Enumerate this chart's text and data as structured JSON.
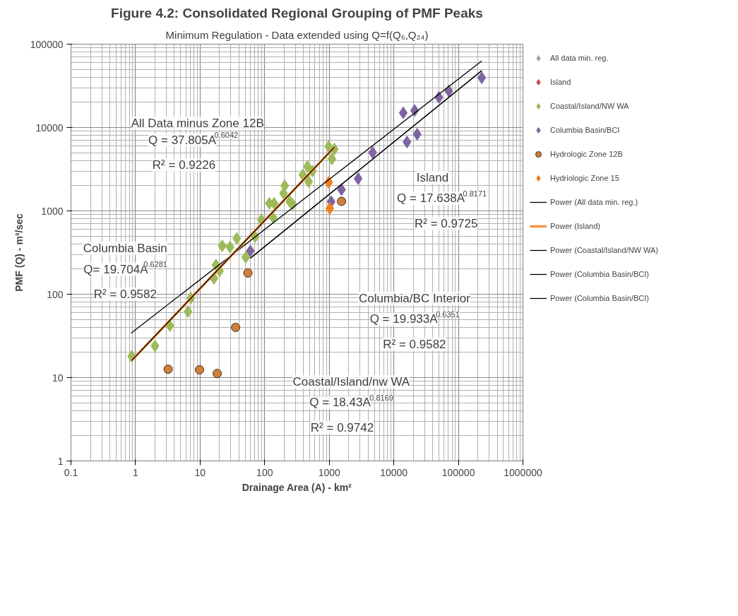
{
  "chart_data": {
    "type": "scatter",
    "title": "Figure 4.2: Consolidated Regional Grouping of PMF Peaks",
    "subtitle": "Minimum Regulation - Data extended using Q=f(Q₆,Q₂₄)",
    "xlabel": "Drainage Area (A) - km²",
    "ylabel": "PMF (Q) - m³/sec",
    "log": "xy",
    "grid": true,
    "legend": "right",
    "xlim": [
      0.1,
      1000000
    ],
    "ylim": [
      1,
      100000
    ],
    "xticks": [
      0.1,
      1,
      10,
      100,
      1000,
      10000,
      100000,
      1000000
    ],
    "yticks": [
      1,
      10,
      100,
      1000,
      10000,
      100000
    ],
    "series": [
      {
        "name": "All data min. reg.",
        "color": "#a5a5a5",
        "marker": "diamond"
      },
      {
        "name": "Island",
        "color": "#c0504d",
        "marker": "diamond"
      },
      {
        "name": "Coastal/Island/NW WA",
        "color": "#9bbb59",
        "marker": "diamond",
        "x": [
          0.87,
          2,
          3.4,
          6.5,
          7.2,
          16.4,
          17.6,
          20,
          22,
          29,
          37,
          51,
          71,
          89,
          118,
          135,
          140,
          196,
          204,
          245,
          270,
          390,
          460,
          480,
          550,
          980,
          1100,
          1200
        ],
        "values": [
          18,
          24,
          42,
          62,
          90,
          155,
          224,
          190,
          380,
          368,
          467,
          277,
          490,
          780,
          1230,
          830,
          1230,
          1620,
          2000,
          1290,
          1200,
          2700,
          3400,
          2240,
          3000,
          5900,
          4200,
          5500
        ]
      },
      {
        "name": "Columbia Basin/BCI",
        "color": "#8064a2",
        "marker": "diamond",
        "x": [
          60,
          1070,
          1550,
          2800,
          4700,
          14000,
          16000,
          21000,
          23000,
          50000,
          71000,
          230000
        ],
        "values": [
          330,
          1290,
          1800,
          2440,
          5000,
          15000,
          6700,
          16000,
          8300,
          23000,
          27500,
          39500
        ]
      },
      {
        "name": "Hydrologic Zone 12B",
        "color": "#d0803a",
        "marker": "circle",
        "x": [
          3.2,
          9.8,
          18.4,
          35.5,
          55,
          1550
        ],
        "values": [
          12.6,
          12.4,
          11.2,
          40,
          180,
          1300
        ]
      },
      {
        "name": "Hydriologic Zone 15",
        "color": "#f07f1e",
        "marker": "diamond",
        "x": [
          980,
          1020
        ],
        "values": [
          2200,
          1070
        ]
      },
      {
        "name": "Power (All data min. reg.)",
        "type": "line",
        "color": "#000000",
        "x": [
          0.85,
          230000
        ],
        "values": [
          34,
          63000
        ]
      },
      {
        "name": "Power (Island)",
        "type": "line",
        "color": "#f79646",
        "x": [
          0.87,
          1200
        ],
        "values": [
          16,
          5800
        ]
      },
      {
        "name": "Power (Coastal/Island/NW WA)",
        "type": "line",
        "color": "#000000",
        "x": [
          0.87,
          1200
        ],
        "values": [
          16,
          5800
        ]
      },
      {
        "name": "Power (Columbia Basin/BCI)",
        "type": "line",
        "color": "#000000",
        "x": [
          60,
          230000
        ],
        "values": [
          270,
          48000
        ]
      },
      {
        "name": "Power (Columbia Basin/BCI)",
        "type": "line",
        "color": "#000000",
        "x": [
          60,
          230000
        ],
        "values": [
          270,
          48000
        ]
      }
    ],
    "annotations": [
      "All Data minus Zone 12B",
      "Q = 37.805A$^{0.6042}$",
      "R² = 0.9226",
      "Columbia Basin",
      "Q= 19.704A$^{0.6281}$",
      "R² = 0.9582",
      "Island",
      "Q = 17.638A$^{0.8171}$",
      "R² = 0.9725",
      "Columbia/BC Interior",
      "Q = 19.933A$^{0.6351}$",
      "R² = 0.9582",
      "Coastal/Island/nw WA",
      "Q = 18.43A$^{0.8169}$",
      "R² = 0.9742"
    ]
  }
}
